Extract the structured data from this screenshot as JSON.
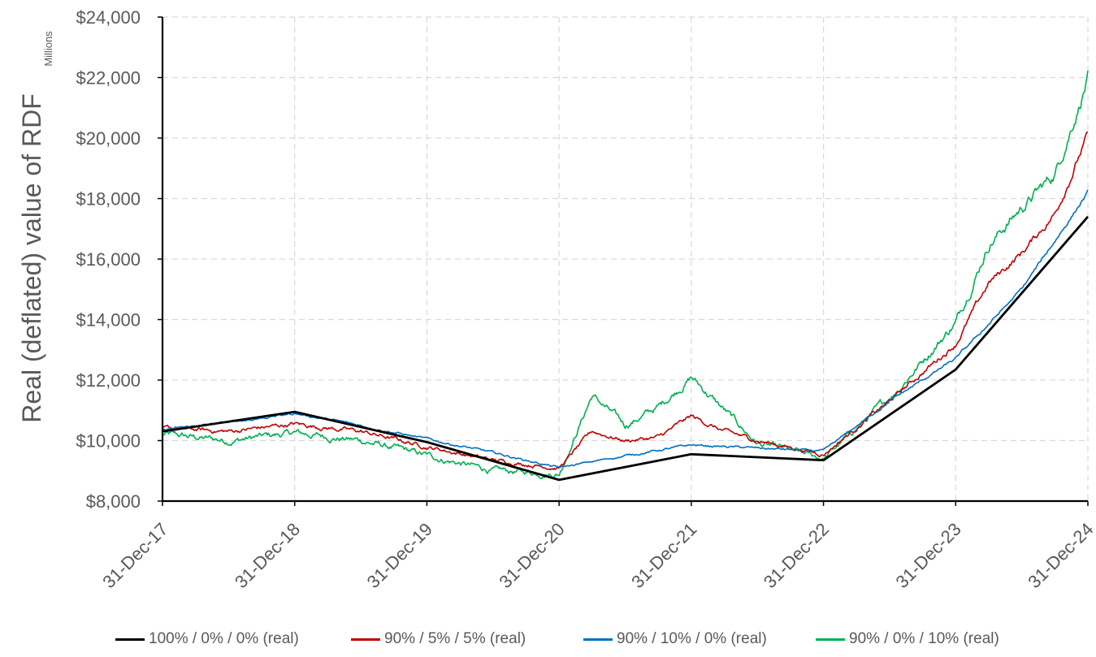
{
  "chart_data": {
    "type": "line",
    "title": "",
    "xlabel": "",
    "ylabel": "Real (deflated) value of RDF",
    "yunits_label": "Millions",
    "ylim": [
      8000,
      24000
    ],
    "xlim": [
      "31-Dec-17",
      "31-Dec-24"
    ],
    "y_ticks": [
      "$8,000",
      "$10,000",
      "$12,000",
      "$14,000",
      "$16,000",
      "$18,000",
      "$20,000",
      "$22,000",
      "$24,000"
    ],
    "y_tick_values": [
      8000,
      10000,
      12000,
      14000,
      16000,
      18000,
      20000,
      22000,
      24000
    ],
    "x_ticks": [
      "31-Dec-17",
      "31-Dec-18",
      "31-Dec-19",
      "31-Dec-20",
      "31-Dec-21",
      "31-Dec-22",
      "31-Dec-23",
      "31-Dec-24"
    ],
    "grid": true,
    "legend_position": "bottom",
    "x_years": [
      2017,
      2018,
      2019,
      2020,
      2021,
      2022,
      2023,
      2024
    ],
    "series": [
      {
        "name": "100% / 0% / 0% (real)",
        "color": "#000000",
        "x": [
          "31-Dec-17",
          "31-Dec-18",
          "31-Dec-19",
          "31-Dec-20",
          "31-Dec-21",
          "31-Dec-22",
          "31-Dec-23",
          "31-Dec-24"
        ],
        "values": [
          10300,
          10950,
          9950,
          8700,
          9550,
          9350,
          12350,
          17400
        ]
      },
      {
        "name": "90% / 5% / 5% (real)",
        "color": "#C00000",
        "x": [
          "31-Dec-17",
          "31-Jun-18",
          "31-Dec-18",
          "31-Jun-19",
          "31-Dec-19",
          "31-Jun-20",
          "31-Dec-20",
          "31-Mar-21",
          "31-Jun-21",
          "31-Sep-21",
          "31-Dec-21",
          "31-Mar-22",
          "31-Jun-22",
          "31-Dec-22",
          "31-Jun-23",
          "31-Dec-23",
          "31-Mar-24",
          "31-Jun-24",
          "31-Sep-24",
          "31-Dec-24"
        ],
        "values": [
          10400,
          10300,
          10550,
          10300,
          9800,
          9350,
          9100,
          10300,
          10000,
          10100,
          10800,
          10300,
          10000,
          9550,
          11300,
          13200,
          15200,
          16200,
          17500,
          20100
        ]
      },
      {
        "name": "90% / 10% / 0% (real)",
        "color": "#0070C0",
        "x": [
          "31-Dec-17",
          "31-Jun-18",
          "31-Dec-18",
          "31-Jun-19",
          "31-Dec-19",
          "31-Jun-20",
          "31-Dec-20",
          "31-Jun-21",
          "31-Dec-21",
          "31-Jun-22",
          "31-Dec-22",
          "31-Jun-23",
          "31-Dec-23",
          "31-Jun-24",
          "31-Dec-24"
        ],
        "values": [
          10350,
          10600,
          10900,
          10500,
          10050,
          9600,
          9100,
          9500,
          9850,
          9750,
          9650,
          11300,
          12700,
          15000,
          18200
        ]
      },
      {
        "name": "90% / 0% / 10% (real)",
        "color": "#00B050",
        "x": [
          "31-Dec-17",
          "31-Jun-18",
          "31-Dec-18",
          "31-Jun-19",
          "31-Dec-19",
          "31-Jun-20",
          "31-Dec-20",
          "31-Mar-21",
          "31-Jun-21",
          "31-Sep-21",
          "31-Dec-21",
          "31-Mar-22",
          "31-Jun-22",
          "31-Dec-22",
          "31-Jun-23",
          "31-Dec-23",
          "31-Mar-24",
          "31-Jun-24",
          "31-Sep-24",
          "31-Dec-24"
        ],
        "values": [
          10200,
          10000,
          10250,
          10000,
          9500,
          9000,
          8900,
          11500,
          10500,
          11100,
          12100,
          11000,
          9900,
          9400,
          11400,
          13900,
          16500,
          17700,
          18800,
          22000
        ]
      }
    ]
  }
}
